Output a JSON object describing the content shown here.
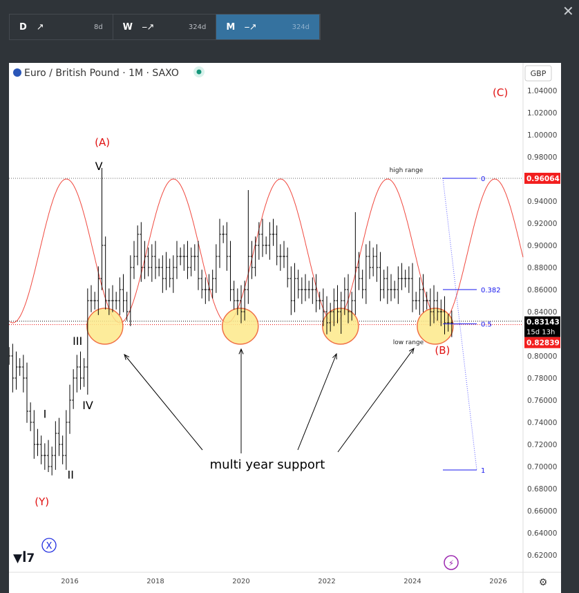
{
  "tabs": [
    {
      "label": "D",
      "arrow": "↗",
      "days": "8d",
      "active": false
    },
    {
      "label": "W",
      "arrow": "⎯↗",
      "days": "324d",
      "active": false
    },
    {
      "label": "M",
      "arrow": "⎯↗",
      "days": "324d",
      "active": true
    }
  ],
  "close_icon": "✕",
  "header": {
    "title": "Euro / British Pound · 1M · SAXO",
    "currency": "GBP"
  },
  "chart_data": {
    "type": "ohlc",
    "start_month": "2014-08",
    "closes": [
      0.8,
      0.78,
      0.79,
      0.79,
      0.78,
      0.75,
      0.74,
      0.72,
      0.72,
      0.71,
      0.71,
      0.7,
      0.71,
      0.73,
      0.72,
      0.71,
      0.74,
      0.76,
      0.78,
      0.79,
      0.78,
      0.79,
      0.85,
      0.85,
      0.85,
      0.87,
      0.9,
      0.85,
      0.85,
      0.85,
      0.85,
      0.86,
      0.85,
      0.84,
      0.88,
      0.89,
      0.91,
      0.88,
      0.89,
      0.88,
      0.89,
      0.88,
      0.88,
      0.87,
      0.88,
      0.87,
      0.88,
      0.89,
      0.89,
      0.89,
      0.88,
      0.89,
      0.89,
      0.87,
      0.86,
      0.86,
      0.86,
      0.87,
      0.89,
      0.91,
      0.91,
      0.89,
      0.86,
      0.85,
      0.85,
      0.84,
      0.86,
      0.89,
      0.88,
      0.9,
      0.91,
      0.9,
      0.9,
      0.91,
      0.91,
      0.89,
      0.89,
      0.89,
      0.87,
      0.85,
      0.87,
      0.86,
      0.86,
      0.86,
      0.86,
      0.86,
      0.85,
      0.85,
      0.84,
      0.83,
      0.84,
      0.85,
      0.84,
      0.85,
      0.86,
      0.84,
      0.85,
      0.88,
      0.87,
      0.86,
      0.89,
      0.88,
      0.89,
      0.88,
      0.86,
      0.87,
      0.86,
      0.86,
      0.86,
      0.87,
      0.87,
      0.87,
      0.87,
      0.85,
      0.85,
      0.86,
      0.85,
      0.85,
      0.84,
      0.85,
      0.84,
      0.84,
      0.83,
      0.83,
      0.83
    ],
    "notable_highs": {
      "26": 0.97,
      "67": 0.95,
      "97": 0.93
    },
    "notable_lows": {
      "11": 0.695,
      "22": 0.765,
      "93": 0.82
    },
    "ylim": [
      0.61,
      1.05
    ],
    "xlim": [
      2014.5,
      2027.0
    ],
    "y_ticks": [
      "0.62000",
      "0.64000",
      "0.66000",
      "0.68000",
      "0.70000",
      "0.72000",
      "0.74000",
      "0.76000",
      "0.78000",
      "0.80000",
      "0.82000",
      "0.84000",
      "0.86000",
      "0.88000",
      "0.90000",
      "0.92000",
      "0.94000",
      "0.96000",
      "0.98000",
      "1.00000",
      "1.02000",
      "1.04000"
    ],
    "x_ticks": [
      "2016",
      "2018",
      "2020",
      "2022",
      "2024",
      "2026"
    ],
    "cycle": {
      "low": 0.83,
      "high": 0.96,
      "period_years": 2.5,
      "first_peak": 2015.92,
      "color": "#f0483e"
    },
    "support_circles": [
      2016.82,
      2019.98,
      2022.32,
      2024.53
    ],
    "support_level": 0.83,
    "levels": {
      "high_range": 0.96064,
      "last": 0.83143,
      "countdown": "15d 13h",
      "prev_close": 0.82839
    },
    "fib": [
      {
        "label": "0",
        "value": 0.96064
      },
      {
        "label": "0.382",
        "value": 0.86
      },
      {
        "label": "0.5",
        "value": 0.829
      },
      {
        "label": "1",
        "value": 0.6969
      }
    ],
    "wave_labels": [
      {
        "t": "(A)",
        "x": 2016.76,
        "y": 0.99,
        "c": "#e01010"
      },
      {
        "t": "V",
        "x": 2016.68,
        "y": 0.968,
        "c": "#000"
      },
      {
        "t": "III",
        "x": 2016.18,
        "y": 0.81,
        "c": "#000"
      },
      {
        "t": "IV",
        "x": 2016.42,
        "y": 0.752,
        "c": "#000"
      },
      {
        "t": "I",
        "x": 2015.42,
        "y": 0.744,
        "c": "#000"
      },
      {
        "t": "II",
        "x": 2016.02,
        "y": 0.689,
        "c": "#000"
      },
      {
        "t": "(Y)",
        "x": 2015.35,
        "y": 0.665,
        "c": "#e01010"
      },
      {
        "t": "(C)",
        "x": 2026.05,
        "y": 1.035,
        "c": "#e01010"
      },
      {
        "t": "(B)",
        "x": 2024.7,
        "y": 0.802,
        "c": "#e01010"
      }
    ],
    "wave_x_label": "X",
    "annotations": {
      "high_range": "high range",
      "low_range": "low range",
      "support": "multi year support"
    }
  }
}
